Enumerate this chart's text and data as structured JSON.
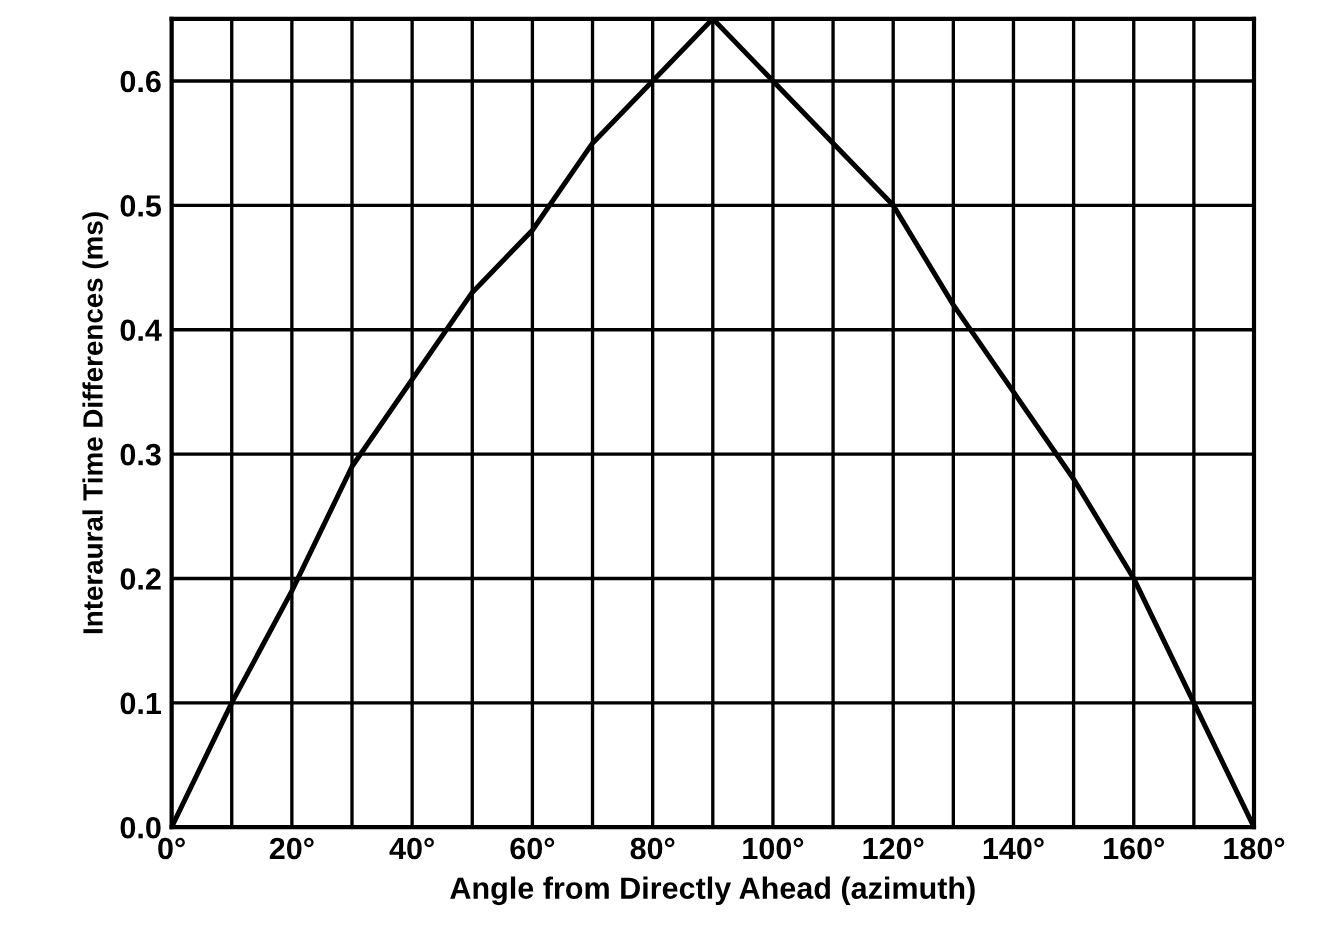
{
  "chart_data": {
    "type": "line",
    "xlabel": "Angle from Directly Ahead (azimuth)",
    "ylabel": "Interaural Time Differences (ms)",
    "x": [
      0,
      10,
      20,
      30,
      40,
      50,
      60,
      70,
      80,
      90,
      100,
      110,
      120,
      130,
      140,
      150,
      160,
      170,
      180
    ],
    "series": [
      {
        "color": "#000000",
        "values": [
          0,
          0.1,
          0.19,
          0.29,
          0.36,
          0.43,
          0.48,
          0.55,
          0.6,
          0.65,
          0.6,
          0.55,
          0.5,
          0.42,
          0.35,
          0.28,
          0.2,
          0.1,
          0
        ]
      }
    ],
    "xlim": [
      0,
      180
    ],
    "ylim": [
      0,
      0.65
    ],
    "xticks": [
      {
        "value": 0,
        "label": "0°"
      },
      {
        "value": 10,
        "label": null
      },
      {
        "value": 20,
        "label": "20°"
      },
      {
        "value": 30,
        "label": null
      },
      {
        "value": 40,
        "label": "40°"
      },
      {
        "value": 50,
        "label": null
      },
      {
        "value": 60,
        "label": "60°"
      },
      {
        "value": 70,
        "label": null
      },
      {
        "value": 80,
        "label": "80°"
      },
      {
        "value": 90,
        "label": null
      },
      {
        "value": 100,
        "label": "100°"
      },
      {
        "value": 110,
        "label": null
      },
      {
        "value": 120,
        "label": "120°"
      },
      {
        "value": 130,
        "label": null
      },
      {
        "value": 140,
        "label": "140°"
      },
      {
        "value": 150,
        "label": null
      },
      {
        "value": 160,
        "label": "160°"
      },
      {
        "value": 170,
        "label": null
      },
      {
        "value": 180,
        "label": "180°"
      }
    ],
    "yticks": [
      {
        "value": 0,
        "label": "0.0"
      },
      0.1,
      0.2,
      0.3,
      0.4,
      0.5,
      0.6
    ],
    "grid": true,
    "marker": "none",
    "line_style": "solid"
  }
}
